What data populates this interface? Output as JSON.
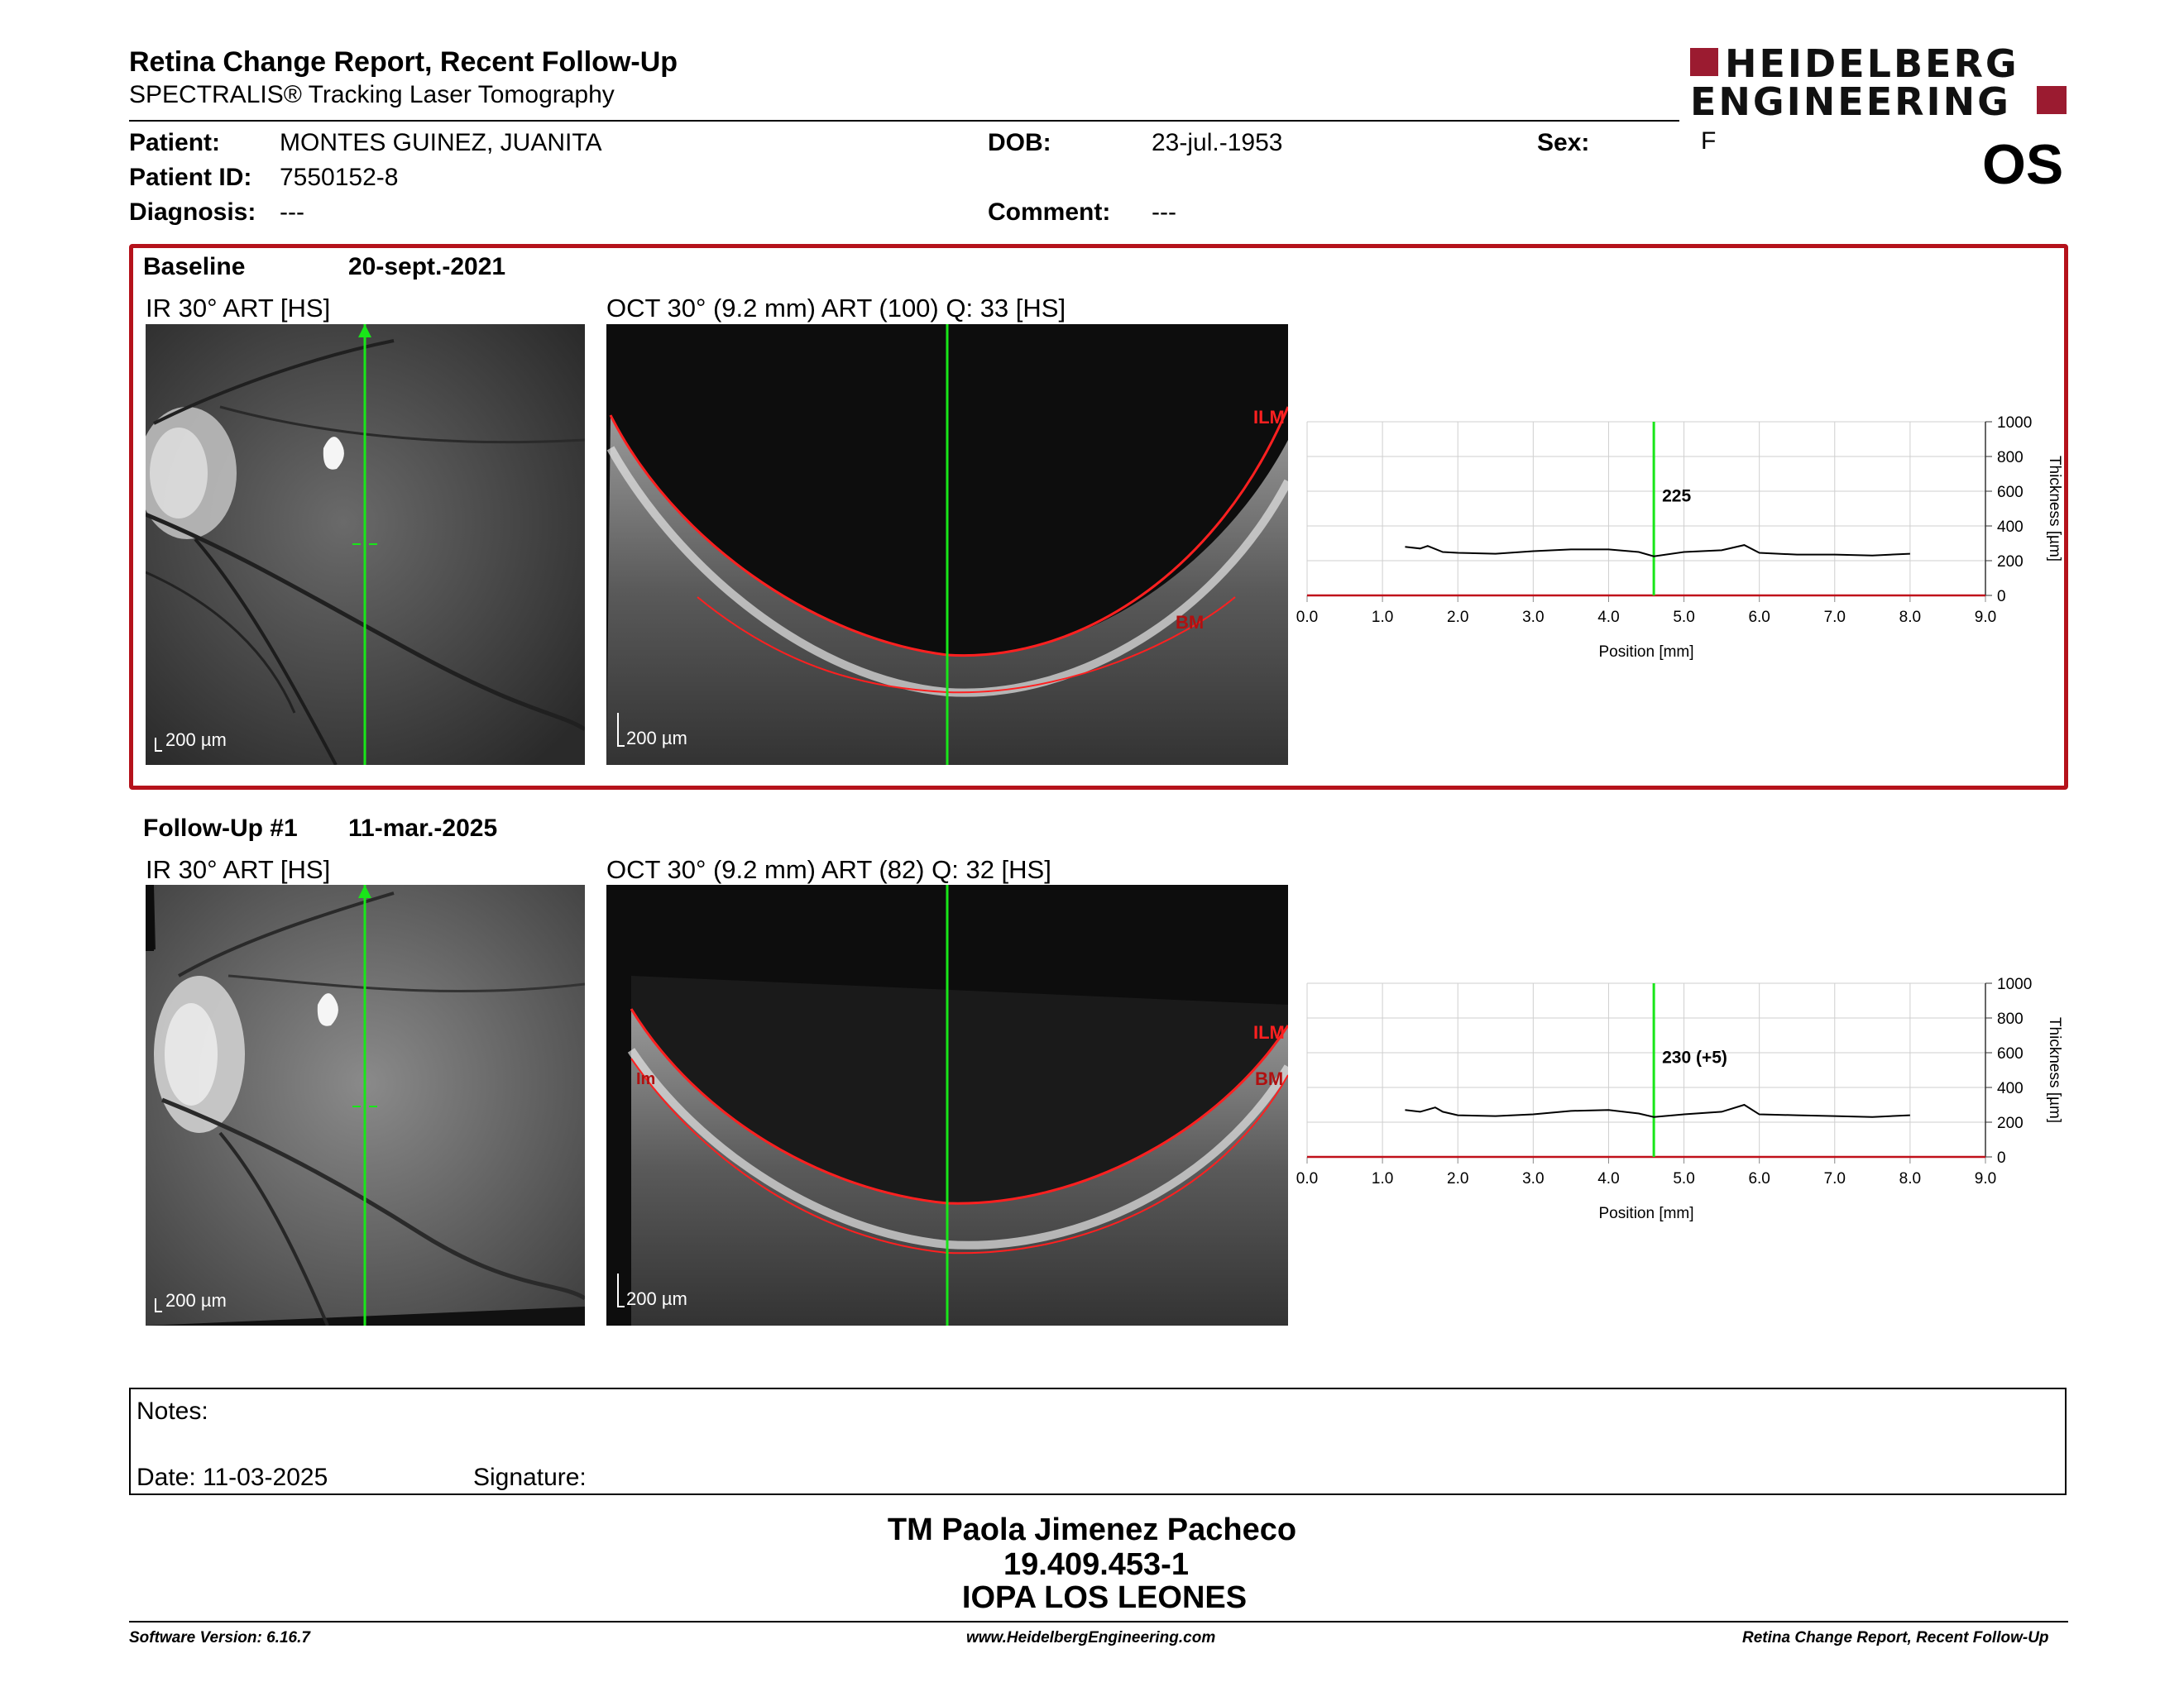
{
  "header": {
    "title": "Retina Change Report, Recent Follow-Up",
    "subtitle": "SPECTRALIS® Tracking Laser Tomography",
    "logo_line1": "HEIDELBERG",
    "logo_line2": "ENGINEERING",
    "eye": "OS"
  },
  "patient": {
    "patient_label": "Patient:",
    "patient_value": "MONTES GUINEZ, JUANITA",
    "id_label": "Patient ID:",
    "id_value": "7550152-8",
    "diagnosis_label": "Diagnosis:",
    "diagnosis_value": "---",
    "dob_label": "DOB:",
    "dob_value": "23-jul.-1953",
    "comment_label": "Comment:",
    "comment_value": "---",
    "sex_label": "Sex:",
    "sex_value": "F"
  },
  "baseline": {
    "label": "Baseline",
    "date": "20-sept.-2021",
    "ir_title": "IR 30° ART [HS]",
    "oct_title": "OCT 30° (9.2 mm) ART (100) Q: 33 [HS]",
    "scale": "200 µm",
    "ilm": "ILM",
    "bm": "BM"
  },
  "followup": {
    "label": "Follow-Up #1",
    "date": "11-mar.-2025",
    "ir_title": "IR 30° ART [HS]",
    "oct_title": "OCT 30° (9.2 mm) ART (82) Q: 32 [HS]",
    "scale": "200 µm",
    "ilm": "ILM",
    "bm": "BM",
    "im": "Im"
  },
  "chart_data": [
    {
      "type": "line",
      "xlabel": "Position [mm]",
      "ylabel": "Thickness [µm]",
      "xlim": [
        0,
        9
      ],
      "ylim": [
        0,
        1000
      ],
      "x_ticks": [
        "0.0",
        "1.0",
        "2.0",
        "3.0",
        "4.0",
        "5.0",
        "6.0",
        "7.0",
        "8.0",
        "9.0"
      ],
      "y_ticks": [
        "0",
        "200",
        "400",
        "600",
        "800",
        "1000"
      ],
      "grid": true,
      "marker_x": 4.6,
      "marker_label": "225",
      "series": [
        {
          "x": [
            1.3,
            1.5,
            1.6,
            1.8,
            2.0,
            2.5,
            3.0,
            3.5,
            4.0,
            4.4,
            4.6,
            5.0,
            5.5,
            5.8,
            6.0,
            6.5,
            7.0,
            7.5,
            8.0
          ],
          "values": [
            280,
            270,
            285,
            250,
            245,
            240,
            255,
            265,
            265,
            250,
            225,
            250,
            260,
            290,
            245,
            235,
            235,
            230,
            240
          ]
        }
      ]
    },
    {
      "type": "line",
      "xlabel": "Position [mm]",
      "ylabel": "Thickness [µm]",
      "xlim": [
        0,
        9
      ],
      "ylim": [
        0,
        1000
      ],
      "x_ticks": [
        "0.0",
        "1.0",
        "2.0",
        "3.0",
        "4.0",
        "5.0",
        "6.0",
        "7.0",
        "8.0",
        "9.0"
      ],
      "y_ticks": [
        "0",
        "200",
        "400",
        "600",
        "800",
        "1000"
      ],
      "grid": true,
      "marker_x": 4.6,
      "marker_label": "230 (+5)",
      "series": [
        {
          "x": [
            1.3,
            1.5,
            1.7,
            1.8,
            2.0,
            2.5,
            3.0,
            3.5,
            4.0,
            4.4,
            4.6,
            5.0,
            5.5,
            5.8,
            6.0,
            6.5,
            7.0,
            7.5,
            8.0
          ],
          "values": [
            270,
            260,
            285,
            260,
            240,
            235,
            245,
            265,
            270,
            250,
            230,
            245,
            260,
            300,
            245,
            240,
            235,
            230,
            240
          ]
        }
      ]
    }
  ],
  "notes": {
    "notes_label": "Notes:",
    "date_label": "Date: 11-03-2025",
    "signature_label": "Signature:"
  },
  "signature_block": {
    "line1": "TM Paola Jimenez Pacheco",
    "line2": "19.409.453-1",
    "line3": "IOPA LOS LEONES"
  },
  "footer": {
    "left": "Software Version: 6.16.7",
    "center": "www.HeidelbergEngineering.com",
    "right": "Retina Change Report, Recent Follow-Up"
  },
  "colors": {
    "brand_red": "#9b1b30",
    "frame_red": "#b5121b",
    "marker_green": "#19e619",
    "layer_red": "#ff2020"
  }
}
